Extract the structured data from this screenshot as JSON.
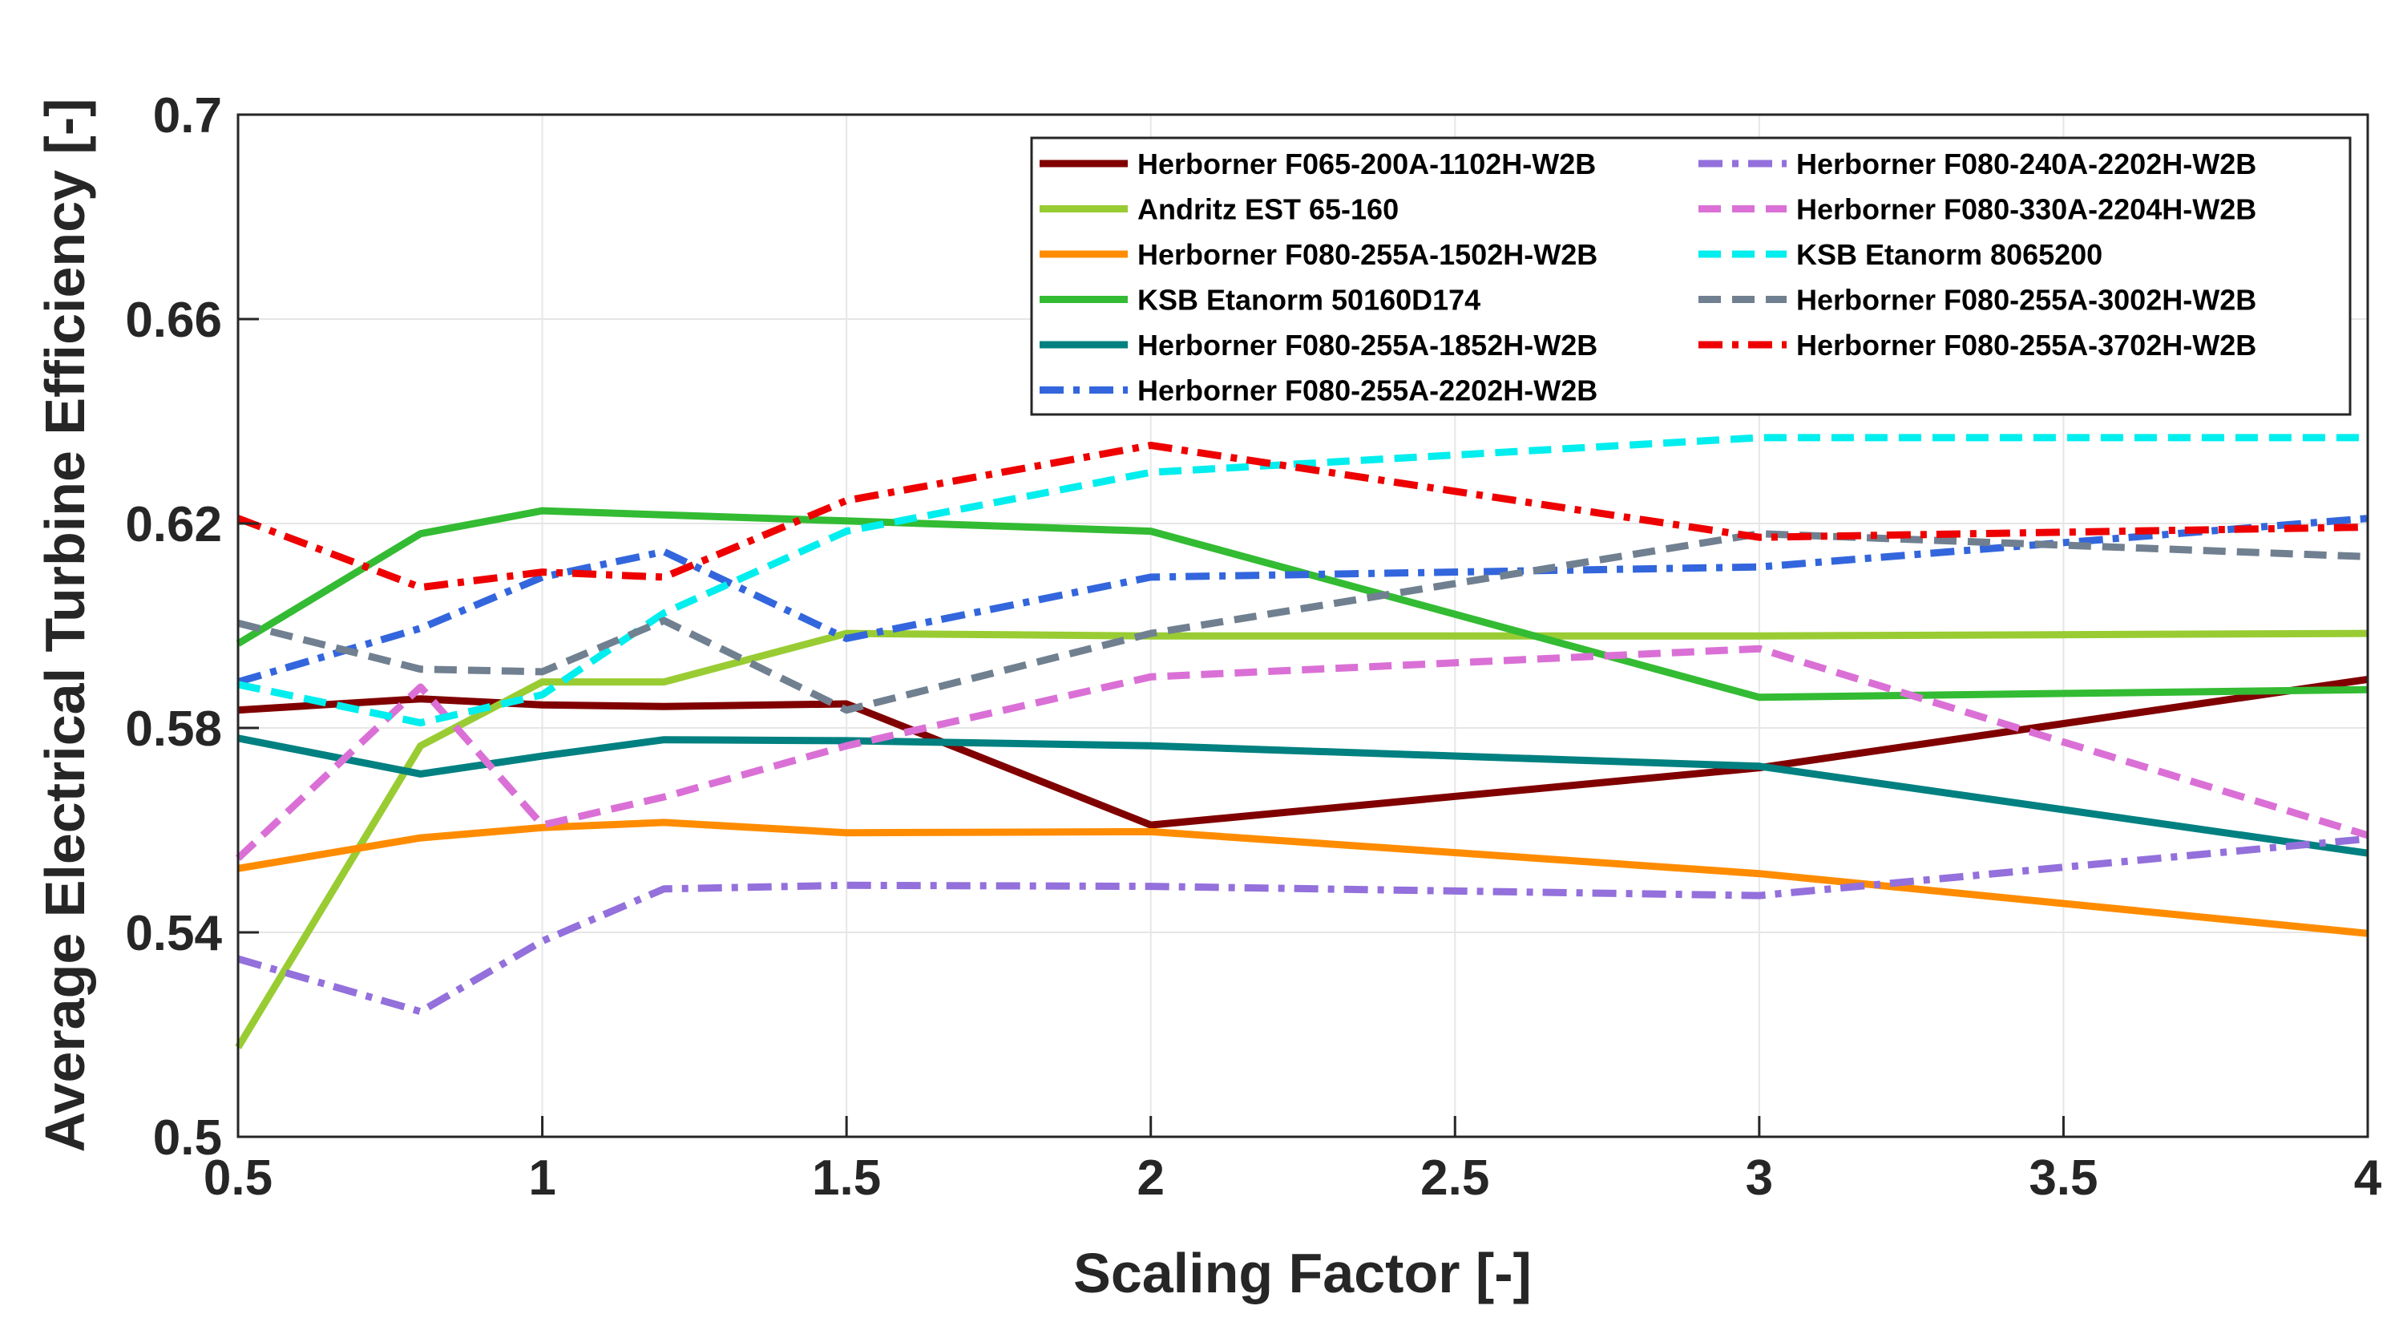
{
  "chart_data": {
    "type": "line",
    "title": "",
    "xlabel": "Scaling Factor [-]",
    "ylabel": "Average Electrical Turbine Efficiency [-]",
    "xlim": [
      0.5,
      4
    ],
    "ylim": [
      0.5,
      0.7
    ],
    "xticks": [
      0.5,
      1,
      1.5,
      2,
      2.5,
      3,
      3.5,
      4
    ],
    "xtick_labels": [
      "0.5",
      "1",
      "1.5",
      "2",
      "2.5",
      "3",
      "3.5",
      "4"
    ],
    "yticks": [
      0.5,
      0.54,
      0.58,
      0.62,
      0.66,
      0.7
    ],
    "ytick_labels": [
      "0.5",
      "0.54",
      "0.58",
      "0.62",
      "0.66",
      "0.7"
    ],
    "grid": true,
    "legend_position": "top-right",
    "x": [
      0.5,
      0.8,
      1.0,
      1.2,
      1.5,
      2.0,
      3.0,
      4.0
    ],
    "series": [
      {
        "name": "Herborner F065-200A-1102H-W2B",
        "color": "#800000",
        "dash": "solid",
        "values": [
          0.5835,
          0.5857,
          0.5845,
          0.5842,
          0.5847,
          0.561,
          0.5722,
          0.5895
        ]
      },
      {
        "name": "Andritz EST 65-160",
        "color": "#99cc33",
        "dash": "solid",
        "values": [
          0.5175,
          0.5765,
          0.589,
          0.589,
          0.5985,
          0.598,
          0.598,
          0.5985
        ]
      },
      {
        "name": "Herborner F080-255A-1502H-W2B",
        "color": "#ff8c00",
        "dash": "solid",
        "values": [
          0.5525,
          0.5585,
          0.5605,
          0.5615,
          0.5595,
          0.5597,
          0.5515,
          0.5398
        ]
      },
      {
        "name": "KSB Etanorm 50160D174",
        "color": "#33bb33",
        "dash": "solid",
        "values": [
          0.5965,
          0.618,
          0.6225,
          0.6217,
          0.6205,
          0.6185,
          0.586,
          0.5875
        ]
      },
      {
        "name": "Herborner F080-255A-1852H-W2B",
        "color": "#008080",
        "dash": "solid",
        "values": [
          0.578,
          0.571,
          0.5745,
          0.5777,
          0.5775,
          0.5765,
          0.5725,
          0.5555
        ]
      },
      {
        "name": "Herborner F080-255A-2202H-W2B",
        "color": "#3366dd",
        "dash": "dashdot",
        "values": [
          0.589,
          0.5995,
          0.6095,
          0.6145,
          0.5975,
          0.6095,
          0.6115,
          0.621
        ]
      },
      {
        "name": "Herborner F080-240A-2202H-W2B",
        "color": "#9370db",
        "dash": "dashdot",
        "values": [
          0.5348,
          0.5245,
          0.5383,
          0.5485,
          0.5492,
          0.549,
          0.5472,
          0.5583
        ]
      },
      {
        "name": "Herborner F080-330A-2204H-W2B",
        "color": "#da70d6",
        "dash": "dashed",
        "values": [
          0.5545,
          0.588,
          0.561,
          0.5665,
          0.5765,
          0.59,
          0.5955,
          0.559
        ]
      },
      {
        "name": "KSB Etanorm 8065200",
        "color": "#00eeee",
        "dash": "dashed",
        "values": [
          0.5885,
          0.581,
          0.5865,
          0.6025,
          0.6185,
          0.63,
          0.6368,
          0.6368
        ]
      },
      {
        "name": "Herborner F080-255A-3002H-W2B",
        "color": "#708090",
        "dash": "dashed",
        "values": [
          0.6005,
          0.5915,
          0.591,
          0.601,
          0.5835,
          0.5985,
          0.618,
          0.6135
        ]
      },
      {
        "name": "Herborner F080-255A-3702H-W2B",
        "color": "#ee0000",
        "dash": "dashdot",
        "values": [
          0.621,
          0.6075,
          0.6105,
          0.6095,
          0.6245,
          0.6353,
          0.6173,
          0.6193
        ]
      }
    ]
  }
}
